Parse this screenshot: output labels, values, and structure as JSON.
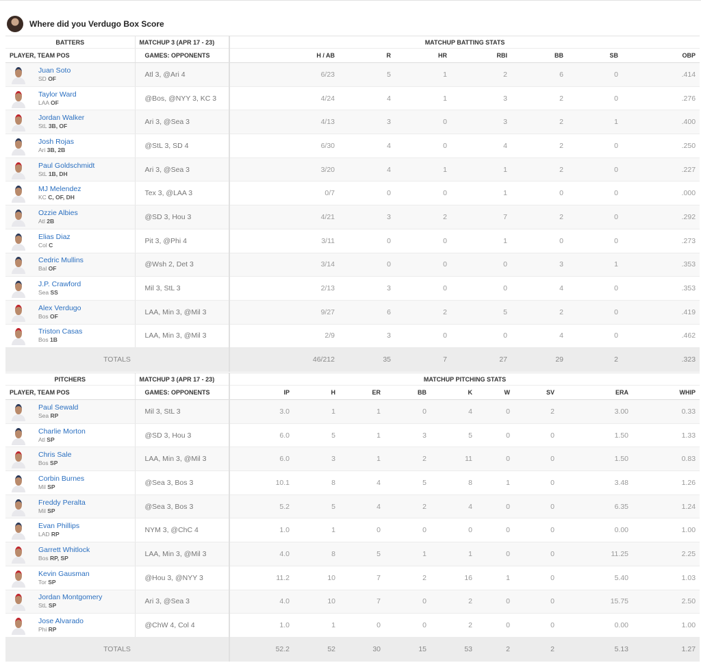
{
  "header": {
    "title": "Where did you Verdugo Box Score"
  },
  "batters": {
    "group_headers": [
      "BATTERS",
      "MATCHUP 3 (APR 17 - 23)",
      "MATCHUP BATTING STATS"
    ],
    "columns": [
      "PLAYER, TEAM POS",
      "GAMES: OPPONENTS",
      "H / AB",
      "R",
      "HR",
      "RBI",
      "BB",
      "SB",
      "OBP"
    ],
    "rows": [
      {
        "name": "Juan Soto",
        "team": "SD",
        "pos": "OF",
        "opponents": "Atl 3, @Ari 4",
        "stats": [
          "6/23",
          "5",
          "1",
          "2",
          "6",
          "0",
          ".414"
        ]
      },
      {
        "name": "Taylor Ward",
        "team": "LAA",
        "pos": "OF",
        "opponents": "@Bos, @NYY 3, KC 3",
        "stats": [
          "4/24",
          "4",
          "1",
          "3",
          "2",
          "0",
          ".276"
        ]
      },
      {
        "name": "Jordan Walker",
        "team": "StL",
        "pos": "3B, OF",
        "opponents": "Ari 3, @Sea 3",
        "stats": [
          "4/13",
          "3",
          "0",
          "3",
          "2",
          "1",
          ".400"
        ]
      },
      {
        "name": "Josh Rojas",
        "team": "Ari",
        "pos": "3B, 2B",
        "opponents": "@StL 3, SD 4",
        "stats": [
          "6/30",
          "4",
          "0",
          "4",
          "2",
          "0",
          ".250"
        ]
      },
      {
        "name": "Paul Goldschmidt",
        "team": "StL",
        "pos": "1B, DH",
        "opponents": "Ari 3, @Sea 3",
        "stats": [
          "3/20",
          "4",
          "1",
          "1",
          "2",
          "0",
          ".227"
        ]
      },
      {
        "name": "MJ Melendez",
        "team": "KC",
        "pos": "C, OF, DH",
        "opponents": "Tex 3, @LAA 3",
        "stats": [
          "0/7",
          "0",
          "0",
          "1",
          "0",
          "0",
          ".000"
        ]
      },
      {
        "name": "Ozzie Albies",
        "team": "Atl",
        "pos": "2B",
        "opponents": "@SD 3, Hou 3",
        "stats": [
          "4/21",
          "3",
          "2",
          "7",
          "2",
          "0",
          ".292"
        ]
      },
      {
        "name": "Elias Diaz",
        "team": "Col",
        "pos": "C",
        "opponents": "Pit 3, @Phi 4",
        "stats": [
          "3/11",
          "0",
          "0",
          "1",
          "0",
          "0",
          ".273"
        ]
      },
      {
        "name": "Cedric Mullins",
        "team": "Bal",
        "pos": "OF",
        "opponents": "@Wsh 2, Det 3",
        "stats": [
          "3/14",
          "0",
          "0",
          "0",
          "3",
          "1",
          ".353"
        ]
      },
      {
        "name": "J.P. Crawford",
        "team": "Sea",
        "pos": "SS",
        "opponents": "Mil 3, StL 3",
        "stats": [
          "2/13",
          "3",
          "0",
          "0",
          "4",
          "0",
          ".353"
        ]
      },
      {
        "name": "Alex Verdugo",
        "team": "Bos",
        "pos": "OF",
        "opponents": "LAA, Min 3, @Mil 3",
        "stats": [
          "9/27",
          "6",
          "2",
          "5",
          "2",
          "0",
          ".419"
        ]
      },
      {
        "name": "Triston Casas",
        "team": "Bos",
        "pos": "1B",
        "opponents": "LAA, Min 3, @Mil 3",
        "stats": [
          "2/9",
          "3",
          "0",
          "0",
          "4",
          "0",
          ".462"
        ]
      }
    ],
    "totals": {
      "label": "TOTALS",
      "stats": [
        "46/212",
        "35",
        "7",
        "27",
        "29",
        "2",
        ".323"
      ]
    }
  },
  "pitchers": {
    "group_headers": [
      "PITCHERS",
      "MATCHUP 3 (APR 17 - 23)",
      "MATCHUP PITCHING STATS"
    ],
    "columns": [
      "PLAYER, TEAM POS",
      "GAMES: OPPONENTS",
      "IP",
      "H",
      "ER",
      "BB",
      "K",
      "W",
      "SV",
      "ERA",
      "WHIP"
    ],
    "rows": [
      {
        "name": "Paul Sewald",
        "team": "Sea",
        "pos": "RP",
        "opponents": "Mil 3, StL 3",
        "stats": [
          "3.0",
          "1",
          "1",
          "0",
          "4",
          "0",
          "2",
          "3.00",
          "0.33"
        ]
      },
      {
        "name": "Charlie Morton",
        "team": "Atl",
        "pos": "SP",
        "opponents": "@SD 3, Hou 3",
        "stats": [
          "6.0",
          "5",
          "1",
          "3",
          "5",
          "0",
          "0",
          "1.50",
          "1.33"
        ]
      },
      {
        "name": "Chris Sale",
        "team": "Bos",
        "pos": "SP",
        "opponents": "LAA, Min 3, @Mil 3",
        "stats": [
          "6.0",
          "3",
          "1",
          "2",
          "11",
          "0",
          "0",
          "1.50",
          "0.83"
        ]
      },
      {
        "name": "Corbin Burnes",
        "team": "Mil",
        "pos": "SP",
        "opponents": "@Sea 3, Bos 3",
        "stats": [
          "10.1",
          "8",
          "4",
          "5",
          "8",
          "1",
          "0",
          "3.48",
          "1.26"
        ]
      },
      {
        "name": "Freddy Peralta",
        "team": "Mil",
        "pos": "SP",
        "opponents": "@Sea 3, Bos 3",
        "stats": [
          "5.2",
          "5",
          "4",
          "2",
          "4",
          "0",
          "0",
          "6.35",
          "1.24"
        ]
      },
      {
        "name": "Evan Phillips",
        "team": "LAD",
        "pos": "RP",
        "opponents": "NYM 3, @ChC 4",
        "stats": [
          "1.0",
          "1",
          "0",
          "0",
          "0",
          "0",
          "0",
          "0.00",
          "1.00"
        ]
      },
      {
        "name": "Garrett Whitlock",
        "team": "Bos",
        "pos": "RP, SP",
        "opponents": "LAA, Min 3, @Mil 3",
        "stats": [
          "4.0",
          "8",
          "5",
          "1",
          "1",
          "0",
          "0",
          "11.25",
          "2.25"
        ]
      },
      {
        "name": "Kevin Gausman",
        "team": "Tor",
        "pos": "SP",
        "opponents": "@Hou 3, @NYY 3",
        "stats": [
          "11.2",
          "10",
          "7",
          "2",
          "16",
          "1",
          "0",
          "5.40",
          "1.03"
        ]
      },
      {
        "name": "Jordan Montgomery",
        "team": "StL",
        "pos": "SP",
        "opponents": "Ari 3, @Sea 3",
        "stats": [
          "4.0",
          "10",
          "7",
          "0",
          "2",
          "0",
          "0",
          "15.75",
          "2.50"
        ]
      },
      {
        "name": "Jose Alvarado",
        "team": "Phi",
        "pos": "RP",
        "opponents": "@ChW 4, Col 4",
        "stats": [
          "1.0",
          "1",
          "0",
          "0",
          "2",
          "0",
          "0",
          "0.00",
          "1.00"
        ]
      }
    ],
    "totals": {
      "label": "TOTALS",
      "stats": [
        "52.2",
        "52",
        "30",
        "15",
        "53",
        "2",
        "2",
        "5.13",
        "1.27"
      ]
    }
  }
}
